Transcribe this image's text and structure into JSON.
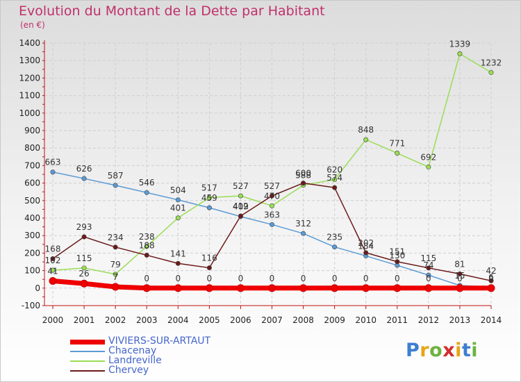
{
  "header": {
    "title": "Evolution du Montant de la Dette par Habitant",
    "unit": "(en €)"
  },
  "logo": {
    "text": "Proxiti",
    "letter_colors": [
      "#3d7fd1",
      "#e8a317",
      "#6db33f",
      "#d12e2e",
      "#e8a317",
      "#3d7fd1",
      "#6db33f"
    ]
  },
  "chart_data": {
    "type": "line",
    "title": "Evolution du Montant de la Dette par Habitant",
    "ylabel": "(en €)",
    "x": [
      2000,
      2001,
      2002,
      2003,
      2004,
      2005,
      2006,
      2007,
      2008,
      2009,
      2010,
      2011,
      2012,
      2013,
      2014
    ],
    "ylim": [
      -100,
      1400
    ],
    "yticks": [
      -100,
      0,
      100,
      200,
      300,
      400,
      500,
      600,
      700,
      800,
      900,
      1000,
      1100,
      1200,
      1300,
      1400
    ],
    "legend_position": "bottom-left",
    "series": [
      {
        "name": "VIVIERS-SUR-ARTAUT",
        "color": "#ee0000",
        "values": [
          41,
          26,
          7,
          0,
          0,
          0,
          0,
          0,
          0,
          0,
          0,
          0,
          0,
          0,
          0
        ]
      },
      {
        "name": "Chacenay",
        "color": "#5b9bd5",
        "values": [
          663,
          626,
          587,
          546,
          504,
          459,
          409,
          363,
          312,
          235,
          184,
          130,
          74,
          15,
          6
        ]
      },
      {
        "name": "Landreville",
        "color": "#99dd55",
        "values": [
          102,
          115,
          79,
          238,
          401,
          517,
          527,
          470,
          588,
          620,
          848,
          771,
          692,
          1339,
          1232
        ]
      },
      {
        "name": "Chervey",
        "color": "#6b1a1a",
        "values": [
          168,
          293,
          234,
          188,
          141,
          116,
          412,
          527,
          600,
          574,
          202,
          151,
          115,
          81,
          42
        ]
      }
    ]
  }
}
